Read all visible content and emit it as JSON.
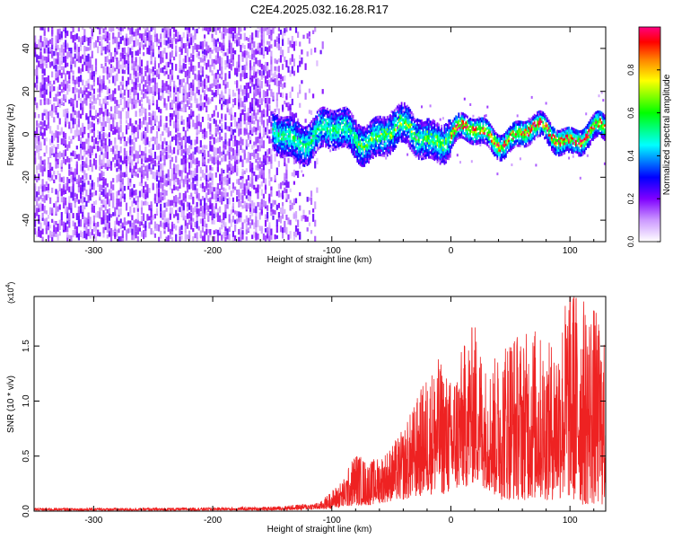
{
  "title": "C2E4.2025.032.16.28.R17",
  "chart_data": [
    {
      "type": "heatmap",
      "xlabel": "Height of straight line (km)",
      "ylabel": "Frequency (Hz)",
      "xlim": [
        -350,
        130
      ],
      "ylim": [
        -50,
        50
      ],
      "x_ticks": [
        "-300",
        "-200",
        "-100",
        "0",
        "100"
      ],
      "y_ticks": [
        "-40",
        "-20",
        "0",
        "20",
        "40"
      ],
      "colorbar": {
        "label": "Normalized spectral amplitude",
        "range": [
          0,
          1
        ],
        "ticks": [
          "0.0",
          "0.2",
          "0.4",
          "0.6",
          "0.8"
        ],
        "colors": [
          "#ffffff",
          "#cc99ff",
          "#7f00ff",
          "#0000ff",
          "#00ffff",
          "#00ff00",
          "#ffff00",
          "#ff8000",
          "#ff0000",
          "#ff0080"
        ]
      },
      "description_regions": [
        {
          "x_range": [
            -350,
            -110
          ],
          "freq_range": [
            -50,
            50
          ],
          "amplitude": "low, scattered"
        },
        {
          "x_range": [
            -150,
            130
          ],
          "freq_range": [
            -10,
            10
          ],
          "amplitude": "concentrated band near 0 Hz, rising toward high values at 0-130 km"
        }
      ]
    },
    {
      "type": "line",
      "xlabel": "Height of straight line (km)",
      "ylabel": "SNR (10 * v/v)",
      "y_multiplier": "(x10",
      "y_multiplier_exp": "4",
      "y_multiplier_close": ")",
      "xlim": [
        -350,
        130
      ],
      "ylim": [
        0,
        19500
      ],
      "x_ticks": [
        "-300",
        "-200",
        "-100",
        "0",
        "100"
      ],
      "y_ticks": [
        "0.0",
        "0.5",
        "1.0",
        "1.5"
      ],
      "color": "#ee2222",
      "envelope": {
        "x": [
          -350,
          -250,
          -150,
          -110,
          -90,
          -80,
          -70,
          -60,
          -50,
          -40,
          -30,
          -20,
          -10,
          0,
          10,
          20,
          30,
          40,
          50,
          60,
          70,
          80,
          90,
          100,
          110,
          120,
          130
        ],
        "max": [
          300,
          300,
          400,
          800,
          3000,
          5500,
          4500,
          5000,
          6000,
          7500,
          10000,
          12500,
          14000,
          12000,
          15000,
          17500,
          13000,
          14500,
          17000,
          16000,
          17000,
          15000,
          16500,
          21500,
          19500,
          19000,
          15000
        ],
        "min": [
          50,
          50,
          80,
          150,
          300,
          500,
          500,
          700,
          900,
          1000,
          1200,
          1500,
          1500,
          1500,
          2000,
          2500,
          2000,
          1000,
          1000,
          1000,
          1000,
          1000,
          1000,
          1000,
          500,
          500,
          500
        ]
      }
    }
  ]
}
